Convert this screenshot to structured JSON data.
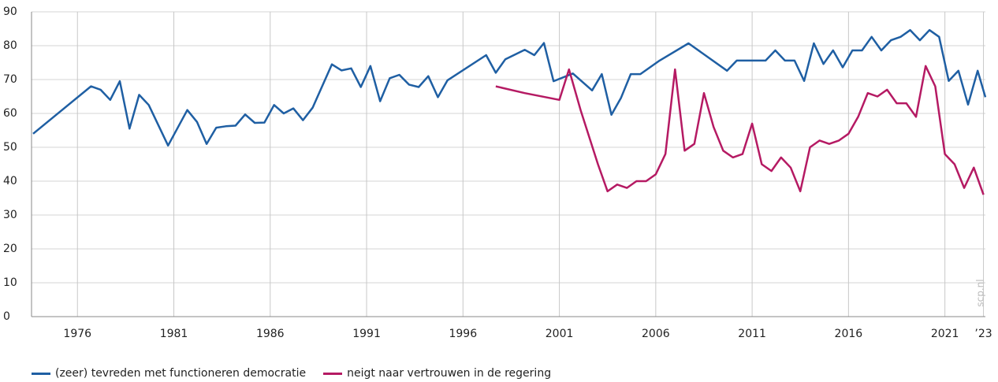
{
  "chart_data": {
    "type": "line",
    "watermark": "scp.nl",
    "xlim": [
      1973.7,
      2023.1
    ],
    "xticks": [
      1976,
      1981,
      1986,
      1991,
      1996,
      2001,
      2006,
      2011,
      2016,
      2021,
      {
        "value": 2023,
        "label": "’23"
      }
    ],
    "ylim": [
      0,
      90
    ],
    "yticks": [
      0,
      10,
      20,
      30,
      40,
      50,
      60,
      70,
      80,
      90
    ],
    "grid": true,
    "legend": "bottom",
    "series": [
      {
        "name": "(zeer) tevreden met functioneren democratie",
        "color": "#1f5fa3",
        "x": [
          1973.7,
          1976.7,
          1977.2,
          1977.7,
          1978.2,
          1978.7,
          1979.2,
          1979.7,
          1980.7,
          1981.7,
          1982.2,
          1982.7,
          1983.2,
          1983.7,
          1984.2,
          1984.7,
          1985.2,
          1985.7,
          1986.2,
          1986.7,
          1987.2,
          1987.7,
          1988.2,
          1989.2,
          1989.7,
          1990.2,
          1990.7,
          1991.2,
          1991.7,
          1992.2,
          1992.7,
          1993.2,
          1993.7,
          1994.2,
          1994.7,
          1995.2,
          1997.2,
          1997.7,
          1998.2,
          1999.2,
          1999.7,
          2000.2,
          2000.7,
          2001.7,
          2002.7,
          2003.2,
          2003.7,
          2004.2,
          2004.7,
          2005.2,
          2006.2,
          2007.7,
          2009.7,
          2010.2,
          2011.7,
          2012.2,
          2012.7,
          2013.2,
          2013.7,
          2014.2,
          2014.7,
          2015.2,
          2015.7,
          2016.2,
          2016.7,
          2017.2,
          2017.7,
          2018.2,
          2018.7,
          2019.2,
          2019.7,
          2020.2,
          2020.7,
          2021.2,
          2021.7,
          2022.2,
          2022.7,
          2023.1
        ],
        "values": [
          54,
          68,
          67,
          64,
          69.5,
          55.5,
          65.5,
          62.5,
          50.5,
          61,
          57.5,
          51,
          55.8,
          56.2,
          56.4,
          59.7,
          57.2,
          57.3,
          62.5,
          60,
          61.5,
          58,
          61.7,
          74.5,
          72.7,
          73.3,
          67.8,
          74,
          63.6,
          70.4,
          71.4,
          68.5,
          67.8,
          71,
          64.8,
          69.8,
          77.2,
          72,
          76,
          78.8,
          77.2,
          80.8,
          69.5,
          71.8,
          66.8,
          71.6,
          59.6,
          64.6,
          71.6,
          71.6,
          75.6,
          80.7,
          72.6,
          75.6,
          75.6,
          78.6,
          75.6,
          75.6,
          69.6,
          80.7,
          74.6,
          78.6,
          73.6,
          78.6,
          78.6,
          82.6,
          78.6,
          81.6,
          82.6,
          84.6,
          81.6,
          84.6,
          82.6,
          69.6,
          72.6,
          62.6,
          72.6,
          64.8
        ]
      },
      {
        "name": "neigt naar vertrouwen in de regering",
        "color": "#b51a63",
        "x": [
          1997.7,
          1999.2,
          2001.0,
          2001.5,
          2002.1,
          2003.0,
          2003.5,
          2004.0,
          2004.5,
          2005.0,
          2005.5,
          2006.0,
          2006.5,
          2007.0,
          2007.5,
          2008.0,
          2008.5,
          2009.0,
          2009.5,
          2010.0,
          2010.5,
          2011.0,
          2011.5,
          2012.0,
          2012.5,
          2013.0,
          2013.5,
          2014.0,
          2014.5,
          2015.0,
          2015.5,
          2016.0,
          2016.5,
          2017.0,
          2017.5,
          2018.0,
          2018.5,
          2019.0,
          2019.5,
          2020.0,
          2020.5,
          2021.0,
          2021.5,
          2022.0,
          2022.5,
          2023.0
        ],
        "values": [
          68,
          66,
          64,
          73,
          61,
          45,
          37,
          39,
          38,
          40,
          40,
          42,
          48,
          73,
          49,
          51,
          66,
          56,
          49,
          47,
          48,
          57,
          45,
          43,
          47,
          44,
          37,
          50,
          52,
          51,
          52,
          54,
          59,
          66,
          65,
          67,
          63,
          63,
          59,
          74,
          68,
          48,
          45,
          38,
          44,
          36
        ]
      }
    ]
  }
}
